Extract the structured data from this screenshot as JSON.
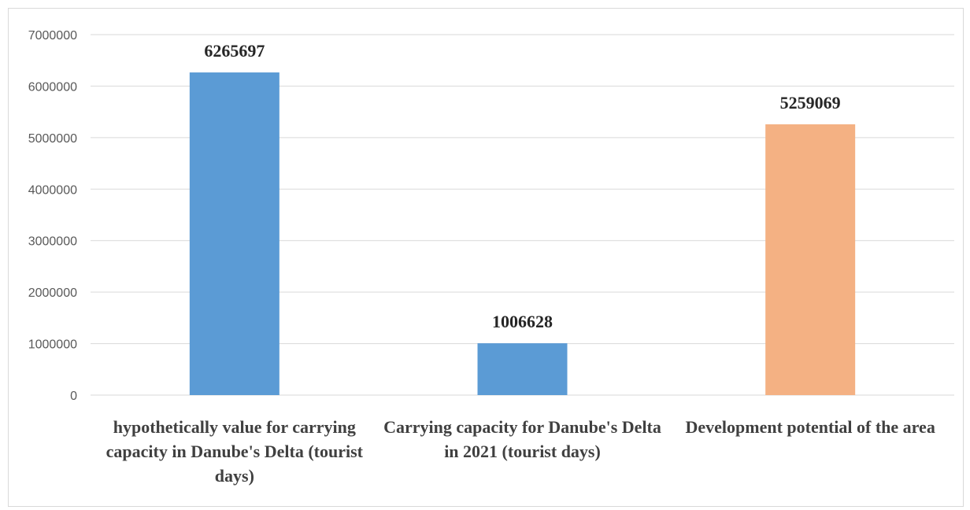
{
  "chart_data": {
    "type": "bar",
    "categories": [
      [
        "hypothetically value for carrying",
        "capacity in Danube's Delta (tourist",
        "days)"
      ],
      [
        "Carrying capacity for Danube's Delta",
        "in 2021 (tourist days)"
      ],
      [
        "Development potential of the area"
      ]
    ],
    "values": [
      6265697,
      1006628,
      5259069
    ],
    "data_labels": [
      "6265697",
      "1006628",
      "5259069"
    ],
    "bar_colors": [
      "#5b9bd5",
      "#5b9bd5",
      "#f4b183"
    ],
    "ylim": [
      0,
      7000000
    ],
    "yticks": [
      0,
      1000000,
      2000000,
      3000000,
      4000000,
      5000000,
      6000000,
      7000000
    ],
    "ytick_labels": [
      "0",
      "1000000",
      "2000000",
      "3000000",
      "4000000",
      "5000000",
      "6000000",
      "7000000"
    ],
    "grid": true,
    "legend": "none",
    "title": "",
    "xlabel": "",
    "ylabel": ""
  }
}
